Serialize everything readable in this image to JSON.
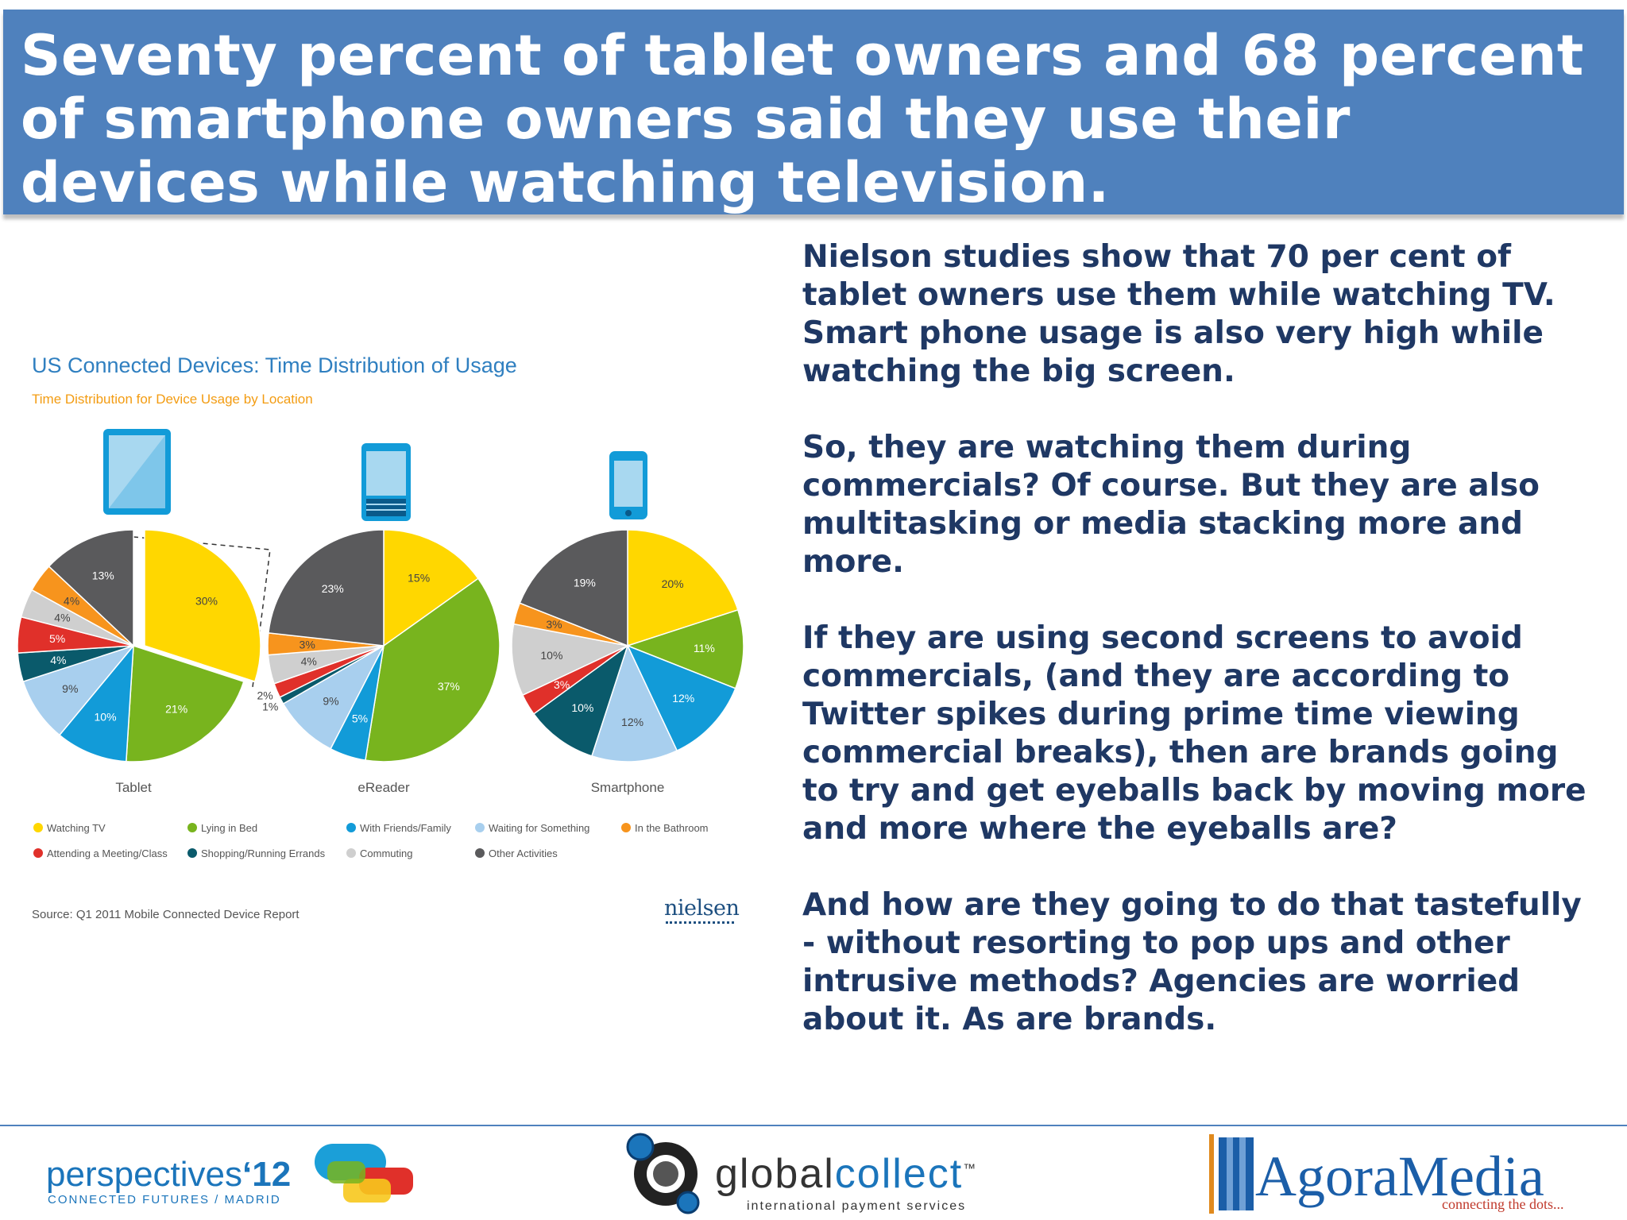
{
  "slide": {
    "title": "Seventy percent of tablet owners and 68 percent of smartphone owners said they use their devices while watching television.",
    "paragraphs": [
      "Nielson studies show that 70 per cent of tablet owners use them while watching TV. Smart phone usage is also very high while watching the big screen.",
      "So, they are watching them during commercials? Of course. But they are also multitasking or media stacking more and more.",
      "If they are using second screens to avoid commercials, (and they are according to Twitter spikes during prime time viewing commercial breaks), then are brands going to try and get eyeballs back by moving more and more where the eyeballs are?",
      "And how are they going to do that tastefully - without resorting to pop ups and other intrusive methods? Agencies are worried about it. As are brands."
    ]
  },
  "figure": {
    "source": "Source: Q1 2011 Mobile Connected Device Report",
    "logo": "nielsen"
  },
  "chart_data": {
    "type": "pie",
    "title": "US Connected Devices: Time Distribution of Usage",
    "subtitle": "Time Distribution for Device Usage by Location",
    "categories": [
      "Watching TV",
      "Lying in Bed",
      "With Friends/Family",
      "Waiting for Something",
      "In the Bathroom",
      "Attending a Meeting/Class",
      "Shopping/Running Errands",
      "Commuting",
      "Other Activities"
    ],
    "colors": {
      "Watching TV": "#ffd700",
      "Lying in Bed": "#78b41e",
      "With Friends/Family": "#129bd8",
      "Waiting for Something": "#a8cfee",
      "In the Bathroom": "#f7941d",
      "Attending a Meeting/Class": "#e0302a",
      "Shopping/Running Errands": "#0a5a6b",
      "Commuting": "#cfcfcf",
      "Other Activities": "#5a5a5c"
    },
    "pies": [
      {
        "name": "Tablet",
        "slices": [
          {
            "category": "Watching TV",
            "value": 30
          },
          {
            "category": "Lying in Bed",
            "value": 21
          },
          {
            "category": "With Friends/Family",
            "value": 10
          },
          {
            "category": "Waiting for Something",
            "value": 9
          },
          {
            "category": "Shopping/Running Errands",
            "value": 4
          },
          {
            "category": "Attending a Meeting/Class",
            "value": 5
          },
          {
            "category": "Commuting",
            "value": 4
          },
          {
            "category": "In the Bathroom",
            "value": 4
          },
          {
            "category": "Other Activities",
            "value": 13
          }
        ]
      },
      {
        "name": "eReader",
        "slices": [
          {
            "category": "Watching TV",
            "value": 15
          },
          {
            "category": "Lying in Bed",
            "value": 37
          },
          {
            "category": "With Friends/Family",
            "value": 5
          },
          {
            "category": "Waiting for Something",
            "value": 9
          },
          {
            "category": "Shopping/Running Errands",
            "value": 1
          },
          {
            "category": "Attending a Meeting/Class",
            "value": 2
          },
          {
            "category": "Commuting",
            "value": 4
          },
          {
            "category": "In the Bathroom",
            "value": 3
          },
          {
            "category": "Other Activities",
            "value": 23
          }
        ]
      },
      {
        "name": "Smartphone",
        "slices": [
          {
            "category": "Watching TV",
            "value": 20
          },
          {
            "category": "Lying in Bed",
            "value": 11
          },
          {
            "category": "With Friends/Family",
            "value": 12
          },
          {
            "category": "Waiting for Something",
            "value": 12
          },
          {
            "category": "Shopping/Running Errands",
            "value": 10
          },
          {
            "category": "Attending a Meeting/Class",
            "value": 3
          },
          {
            "category": "Commuting",
            "value": 10
          },
          {
            "category": "In the Bathroom",
            "value": 3
          },
          {
            "category": "Other Activities",
            "value": 19
          }
        ]
      }
    ],
    "legend_order": [
      "Watching TV",
      "Lying in Bed",
      "With Friends/Family",
      "Waiting for Something",
      "In the Bathroom",
      "Attending a Meeting/Class",
      "Shopping/Running Errands",
      "Commuting",
      "Other Activities"
    ],
    "legend_position": "bottom"
  },
  "footer": {
    "perspectives": "perspectives",
    "perspectives_year": "‘12",
    "perspectives_sub": "CONNECTED FUTURES / MADRID",
    "globalcollect_a": "global",
    "globalcollect_b": "collect",
    "globalcollect_tm": "™",
    "globalcollect_sub": "international payment services",
    "agora": "AgoraMedia",
    "agora_sub": "connecting the dots..."
  }
}
